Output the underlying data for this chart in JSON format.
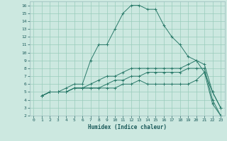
{
  "xlabel": "Humidex (Indice chaleur)",
  "background_color": "#cce8e0",
  "grid_color": "#99ccbb",
  "line_color": "#2a7a6a",
  "xlim": [
    -0.5,
    23.5
  ],
  "ylim": [
    2,
    16.5
  ],
  "xticks": [
    0,
    1,
    2,
    3,
    4,
    5,
    6,
    7,
    8,
    9,
    10,
    11,
    12,
    13,
    14,
    15,
    16,
    17,
    18,
    19,
    20,
    21,
    22,
    23
  ],
  "yticks": [
    2,
    3,
    4,
    5,
    6,
    7,
    8,
    9,
    10,
    11,
    12,
    13,
    14,
    15,
    16
  ],
  "lines": [
    {
      "x": [
        1,
        2,
        3,
        4,
        5,
        6,
        7,
        8,
        9,
        10,
        11,
        12,
        13,
        14,
        15,
        16,
        17,
        18,
        19,
        20,
        21,
        22,
        23
      ],
      "y": [
        4.5,
        5.0,
        5.0,
        5.5,
        6.0,
        6.0,
        9.0,
        11.0,
        11.0,
        13.0,
        15.0,
        16.0,
        16.0,
        15.5,
        15.5,
        13.5,
        12.0,
        11.0,
        9.5,
        9.0,
        8.5,
        5.0,
        3.0
      ]
    },
    {
      "x": [
        1,
        2,
        3,
        4,
        5,
        6,
        7,
        8,
        9,
        10,
        11,
        12,
        13,
        14,
        15,
        16,
        17,
        18,
        19,
        20,
        21,
        22,
        23
      ],
      "y": [
        4.5,
        5.0,
        5.0,
        5.0,
        5.5,
        5.5,
        6.0,
        6.5,
        7.0,
        7.0,
        7.5,
        8.0,
        8.0,
        8.0,
        8.0,
        8.0,
        8.0,
        8.0,
        8.5,
        9.0,
        7.5,
        5.0,
        3.0
      ]
    },
    {
      "x": [
        1,
        2,
        3,
        4,
        5,
        6,
        7,
        8,
        9,
        10,
        11,
        12,
        13,
        14,
        15,
        16,
        17,
        18,
        19,
        20,
        21,
        22,
        23
      ],
      "y": [
        4.5,
        5.0,
        5.0,
        5.0,
        5.5,
        5.5,
        5.5,
        5.5,
        6.0,
        6.5,
        6.5,
        7.0,
        7.0,
        7.5,
        7.5,
        7.5,
        7.5,
        7.5,
        8.0,
        8.0,
        8.0,
        4.0,
        2.0
      ]
    },
    {
      "x": [
        1,
        2,
        3,
        4,
        5,
        6,
        7,
        8,
        9,
        10,
        11,
        12,
        13,
        14,
        15,
        16,
        17,
        18,
        19,
        20,
        21,
        22,
        23
      ],
      "y": [
        4.5,
        5.0,
        5.0,
        5.0,
        5.5,
        5.5,
        5.5,
        5.5,
        5.5,
        5.5,
        6.0,
        6.0,
        6.5,
        6.0,
        6.0,
        6.0,
        6.0,
        6.0,
        6.0,
        6.5,
        7.5,
        3.5,
        2.0
      ]
    }
  ]
}
